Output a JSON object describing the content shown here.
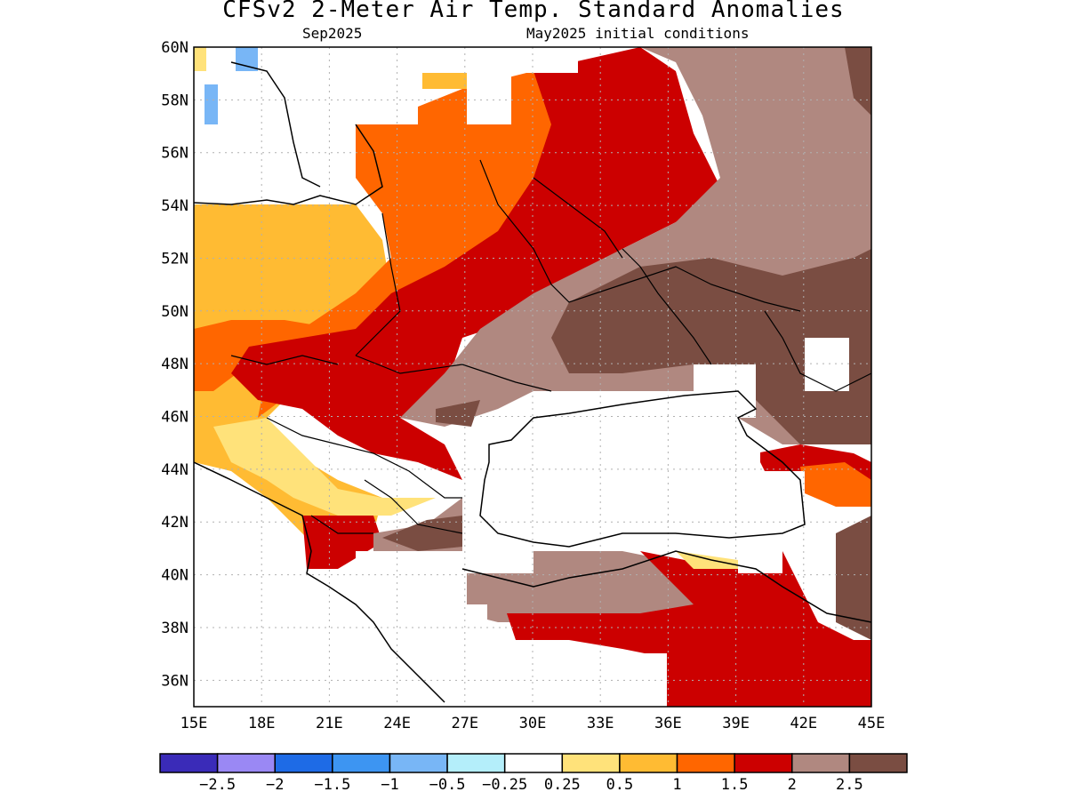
{
  "title": "CFSv2 2-Meter Air Temp. Standard Anomalies",
  "subtitle_left": "Sep2025",
  "subtitle_right": "May2025 initial conditions",
  "map": {
    "lon_range": [
      15,
      45
    ],
    "lat_range": [
      35,
      60
    ],
    "lon_ticks": [
      "15E",
      "18E",
      "21E",
      "24E",
      "27E",
      "30E",
      "33E",
      "36E",
      "39E",
      "42E",
      "45E"
    ],
    "lat_ticks": [
      "60N",
      "58N",
      "56N",
      "54N",
      "52N",
      "50N",
      "48N",
      "46N",
      "44N",
      "42N",
      "40N",
      "38N",
      "36N"
    ],
    "gridlines": "dotted"
  },
  "colorbar": {
    "colors": [
      "#3a2bb8",
      "#9a88f4",
      "#1e6be6",
      "#3d95f2",
      "#78b6f6",
      "#b4eefa",
      "#ffffff",
      "#ffe27a",
      "#ffbb33",
      "#ff6600",
      "#cc0000",
      "#b08880",
      "#7a4d42"
    ],
    "labels": [
      "-2.5",
      "-2",
      "-1.5",
      "-1",
      "-0.5",
      "-0.25",
      "0.25",
      "0.5",
      "1",
      "1.5",
      "2",
      "2.5"
    ]
  },
  "regions": [
    {
      "name": "white-north-west",
      "color": "#ffffff",
      "level": "-0.25 to 0.25"
    },
    {
      "name": "light-orange-west",
      "color": "#ffbb33",
      "level": "0.5 to 1"
    },
    {
      "name": "orange-central",
      "color": "#ff6600",
      "level": "1 to 1.5"
    },
    {
      "name": "red-central",
      "color": "#cc0000",
      "level": "1.5 to 2"
    },
    {
      "name": "light-brown-east",
      "color": "#b08880",
      "level": "2 to 2.5"
    },
    {
      "name": "dark-brown-east",
      "color": "#7a4d42",
      "level": "> 2.5"
    },
    {
      "name": "red-turkey",
      "color": "#cc0000",
      "level": "1.5 to 2"
    }
  ]
}
